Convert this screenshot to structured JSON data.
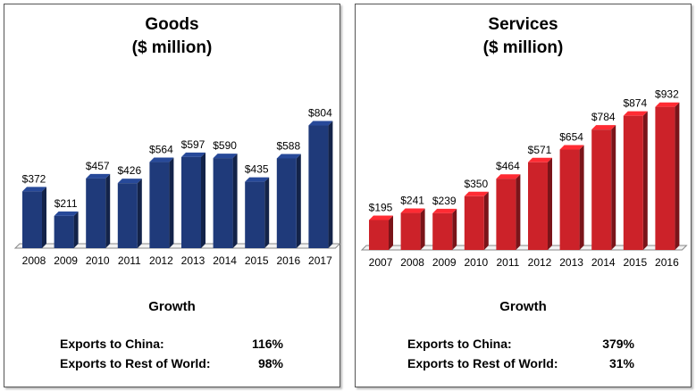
{
  "chart_data": [
    {
      "type": "bar",
      "title": "Goods",
      "subtitle": "($ million)",
      "categories": [
        "2008",
        "2009",
        "2010",
        "2011",
        "2012",
        "2013",
        "2014",
        "2015",
        "2016",
        "2017"
      ],
      "values": [
        372,
        211,
        457,
        426,
        564,
        597,
        590,
        435,
        588,
        804
      ],
      "value_labels": [
        "$372",
        "$211",
        "$457",
        "$426",
        "$564",
        "$597",
        "$590",
        "$435",
        "$588",
        "$804"
      ],
      "color": "#1f3a7a",
      "ylim": [
        0,
        1000
      ],
      "grid": false
    },
    {
      "type": "bar",
      "title": "Services",
      "subtitle": "($ million)",
      "categories": [
        "2007",
        "2008",
        "2009",
        "2010",
        "2011",
        "2012",
        "2013",
        "2014",
        "2015",
        "2016"
      ],
      "values": [
        195,
        241,
        239,
        350,
        464,
        571,
        654,
        784,
        874,
        932
      ],
      "value_labels": [
        "$195",
        "$241",
        "$239",
        "$350",
        "$464",
        "$571",
        "$654",
        "$784",
        "$874",
        "$932"
      ],
      "color": "#cc2229",
      "ylim": [
        0,
        1000
      ],
      "grid": false
    }
  ],
  "goods_growth": {
    "title": "Growth",
    "china_label": "Exports to China:",
    "china_value": "116%",
    "rest_label": "Exports to Rest of World:",
    "rest_value": "98%"
  },
  "services_growth": {
    "title": "Growth",
    "china_label": "Exports to China:",
    "china_value": "379%",
    "rest_label": "Exports to Rest of World:",
    "rest_value": "31%"
  }
}
